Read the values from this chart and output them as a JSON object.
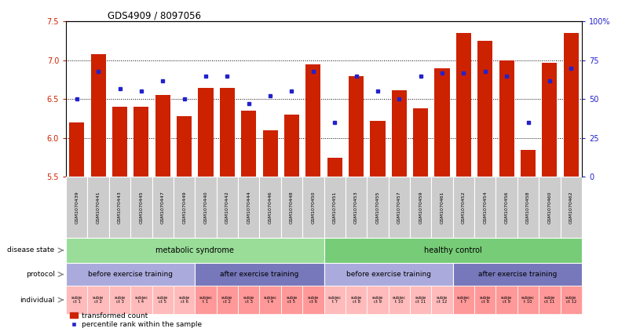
{
  "title": "GDS4909 / 8097056",
  "samples": [
    "GSM1070439",
    "GSM1070441",
    "GSM1070443",
    "GSM1070445",
    "GSM1070447",
    "GSM1070449",
    "GSM1070440",
    "GSM1070442",
    "GSM1070444",
    "GSM1070446",
    "GSM1070448",
    "GSM1070450",
    "GSM1070451",
    "GSM1070453",
    "GSM1070455",
    "GSM1070457",
    "GSM1070459",
    "GSM1070461",
    "GSM1070452",
    "GSM1070454",
    "GSM1070456",
    "GSM1070458",
    "GSM1070460",
    "GSM1070462"
  ],
  "transformed_count": [
    6.2,
    7.08,
    6.4,
    6.4,
    6.55,
    6.28,
    6.65,
    6.65,
    6.35,
    6.1,
    6.3,
    6.95,
    5.75,
    6.8,
    6.22,
    6.62,
    6.38,
    6.9,
    7.35,
    7.25,
    7.0,
    5.85,
    6.97,
    7.35
  ],
  "percentile_rank": [
    50,
    68,
    57,
    55,
    62,
    50,
    65,
    65,
    47,
    52,
    55,
    68,
    35,
    65,
    55,
    50,
    65,
    67,
    67,
    68,
    65,
    35,
    62,
    70
  ],
  "ylim_left": [
    5.5,
    7.5
  ],
  "ylim_right": [
    0,
    100
  ],
  "yticks_left": [
    5.5,
    6.0,
    6.5,
    7.0,
    7.5
  ],
  "yticks_right": [
    0,
    25,
    50,
    75,
    100
  ],
  "bar_color": "#CC2200",
  "dot_color": "#2222CC",
  "disease_states": [
    "metabolic syndrome",
    "healthy control"
  ],
  "disease_ranges": [
    [
      0,
      11
    ],
    [
      12,
      23
    ]
  ],
  "disease_colors": [
    "#99DD99",
    "#77CC77"
  ],
  "protocol_groups": [
    {
      "label": "before exercise training",
      "start": 0,
      "end": 5,
      "color": "#AAAADD"
    },
    {
      "label": "after exercise training",
      "start": 6,
      "end": 11,
      "color": "#7777BB"
    },
    {
      "label": "before exercise training",
      "start": 12,
      "end": 17,
      "color": "#AAAADD"
    },
    {
      "label": "after exercise training",
      "start": 18,
      "end": 23,
      "color": "#7777BB"
    }
  ],
  "individual_labels": [
    "subje\nct 1",
    "subje\nct 2",
    "subje\nct 3",
    "subjec\nt 4",
    "subje\nct 5",
    "subje\nct 6",
    "subjec\nt 1",
    "subje\nct 2",
    "subje\nct 3",
    "subjec\nt 4",
    "subje\nct 5",
    "subje\nct 6",
    "subjec\nt 7",
    "subje\nct 8",
    "subje\nct 9",
    "subjec\nt 10",
    "subje\nct 11",
    "subje\nct 12",
    "subjec\nt 7",
    "subje\nct 8",
    "subje\nct 9",
    "subjec\nt 10",
    "subje\nct 11",
    "subje\nct 12"
  ],
  "individual_colors": [
    "#FFBBBB",
    "#FFBBBB",
    "#FFBBBB",
    "#FFBBBB",
    "#FFBBBB",
    "#FFBBBB",
    "#FF9999",
    "#FF9999",
    "#FF9999",
    "#FF9999",
    "#FF9999",
    "#FF9999",
    "#FFBBBB",
    "#FFBBBB",
    "#FFBBBB",
    "#FFBBBB",
    "#FFBBBB",
    "#FFBBBB",
    "#FF9999",
    "#FF9999",
    "#FF9999",
    "#FF9999",
    "#FF9999",
    "#FF9999"
  ],
  "legend_bar_label": "transformed count",
  "legend_dot_label": "percentile rank within the sample",
  "sample_area_color": "#CCCCCC",
  "left_label_color": "#666666",
  "arrow_color": "#888888"
}
